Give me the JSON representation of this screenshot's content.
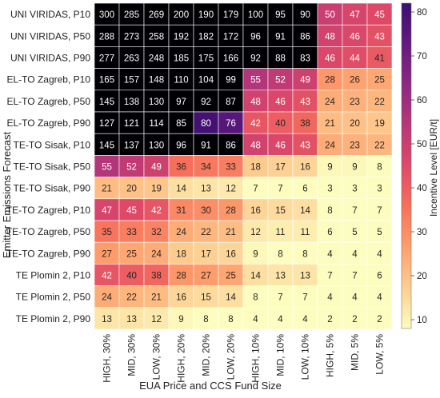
{
  "chart_data": {
    "type": "heatmap",
    "title": "",
    "xlabel": "EUA Price and CCS Fund Size",
    "ylabel": "Emitter Emissions Forecast",
    "x_categories": [
      "HIGH, 30%",
      "MID, 30%",
      "LOW, 30%",
      "HIGH, 20%",
      "MID, 20%",
      "LOW, 20%",
      "HIGH, 10%",
      "MID, 10%",
      "LOW, 10%",
      "HIGH, 5%",
      "MID, 5%",
      "LOW, 5%"
    ],
    "y_categories": [
      "UNI VIRIDAS, P10",
      "UNI VIRIDAS, P50",
      "UNI VIRIDAS, P90",
      "EL-TO Zagreb, P10",
      "EL-TO Zagreb, P50",
      "EL-TO Zagreb, P90",
      "TE-TO Sisak, P10",
      "TE-TO Sisak, P50",
      "TE-TO Sisak, P90",
      "TE-TO Zagreb, P10",
      "TE-TO Zagreb, P50",
      "TE-TO Zagreb, P90",
      "TE Plomin 2, P10",
      "TE Plomin 2, P50",
      "TE Plomin 2, P90"
    ],
    "values": [
      [
        300,
        285,
        269,
        200,
        190,
        179,
        100,
        95,
        90,
        50,
        47,
        45
      ],
      [
        288,
        273,
        258,
        192,
        182,
        172,
        96,
        91,
        86,
        48,
        46,
        43
      ],
      [
        277,
        263,
        248,
        185,
        175,
        166,
        92,
        88,
        83,
        46,
        44,
        41
      ],
      [
        165,
        157,
        148,
        110,
        104,
        99,
        55,
        52,
        49,
        28,
        26,
        25
      ],
      [
        145,
        138,
        130,
        97,
        92,
        87,
        48,
        46,
        43,
        24,
        23,
        22
      ],
      [
        127,
        121,
        114,
        85,
        80,
        76,
        42,
        40,
        38,
        21,
        20,
        19
      ],
      [
        145,
        137,
        130,
        96,
        91,
        86,
        48,
        46,
        43,
        24,
        23,
        22
      ],
      [
        55,
        52,
        49,
        36,
        34,
        33,
        18,
        17,
        16,
        9,
        9,
        8
      ],
      [
        21,
        20,
        19,
        14,
        13,
        12,
        7,
        7,
        6,
        3,
        3,
        3
      ],
      [
        47,
        45,
        42,
        31,
        30,
        28,
        16,
        15,
        14,
        8,
        7,
        7
      ],
      [
        35,
        33,
        32,
        24,
        22,
        21,
        12,
        11,
        11,
        6,
        5,
        5
      ],
      [
        27,
        25,
        24,
        18,
        17,
        16,
        9,
        8,
        8,
        4,
        4,
        4
      ],
      [
        42,
        40,
        38,
        28,
        27,
        25,
        14,
        13,
        13,
        7,
        7,
        6
      ],
      [
        24,
        22,
        21,
        16,
        15,
        14,
        8,
        7,
        7,
        4,
        4,
        4
      ],
      [
        13,
        13,
        12,
        9,
        8,
        8,
        4,
        4,
        4,
        2,
        2,
        2
      ]
    ],
    "colorbar": {
      "label": "Incentive Level [EUR/t]",
      "min": 8,
      "max": 82,
      "ticks": [
        10,
        20,
        30,
        40,
        50,
        60,
        70,
        80
      ],
      "colormap": "magma_r"
    },
    "grid": false,
    "cell_borders": true
  }
}
